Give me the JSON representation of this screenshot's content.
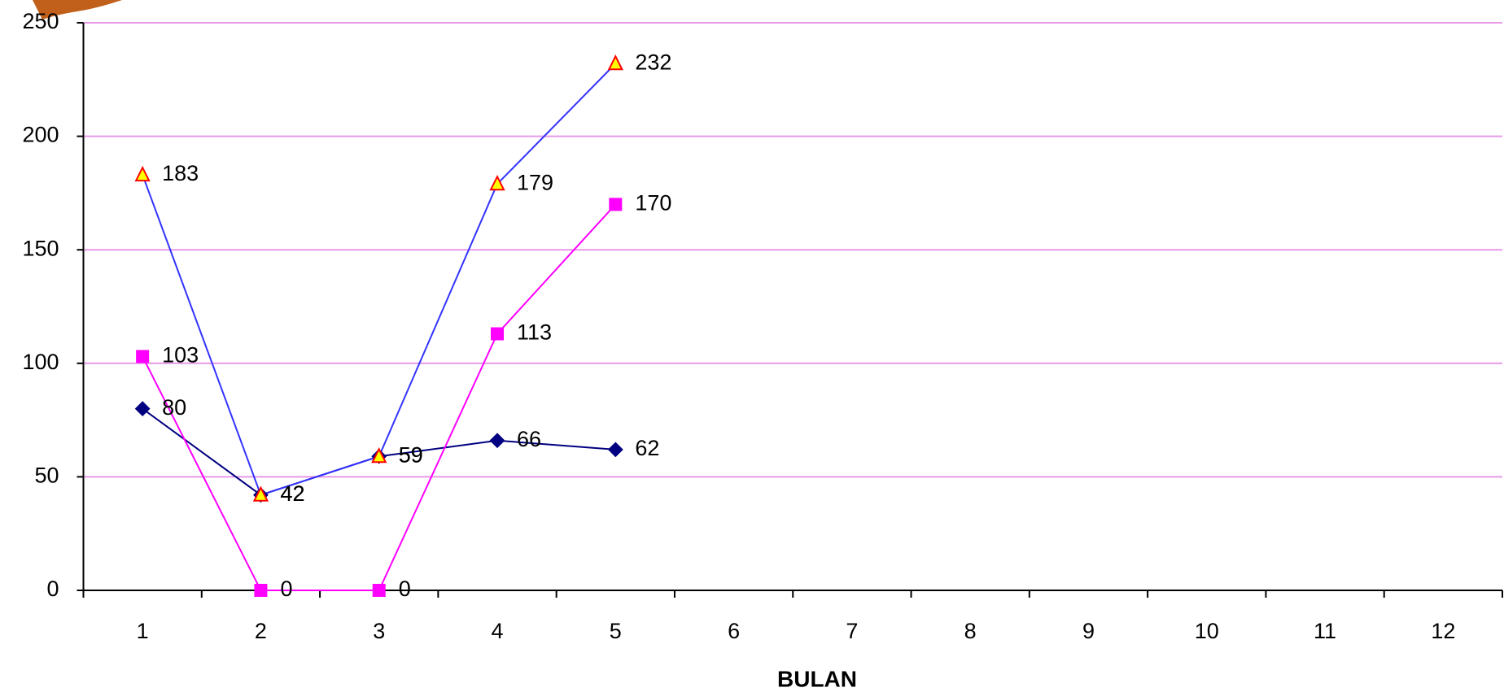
{
  "chart_data": {
    "type": "line",
    "x_label": "BULAN",
    "categories": [
      "1",
      "2",
      "3",
      "4",
      "5",
      "6",
      "7",
      "8",
      "9",
      "10",
      "11",
      "12"
    ],
    "series": [
      {
        "color": "#000080",
        "marker": "diamond",
        "marker_color": "#000080",
        "marker_edge": "#000080",
        "values": [
          80,
          42,
          59,
          66,
          62,
          null,
          null,
          null,
          null,
          null,
          null,
          null
        ]
      },
      {
        "color": "#ff00ff",
        "marker": "square",
        "marker_color": "#ff00ff",
        "marker_edge": "#ff00ff",
        "values": [
          103,
          0,
          0,
          113,
          170,
          null,
          null,
          null,
          null,
          null,
          null,
          null
        ]
      },
      {
        "color": "#3333ff",
        "marker": "triangle",
        "marker_color": "#ffff00",
        "marker_edge": "#ff0000",
        "values": [
          183,
          42,
          59,
          179,
          232,
          null,
          null,
          null,
          null,
          null,
          null,
          null
        ]
      }
    ],
    "ylim": [
      0,
      250
    ],
    "yticks": [
      0,
      50,
      100,
      150,
      200,
      250
    ],
    "grid": true,
    "grid_color": "#e899e8"
  }
}
